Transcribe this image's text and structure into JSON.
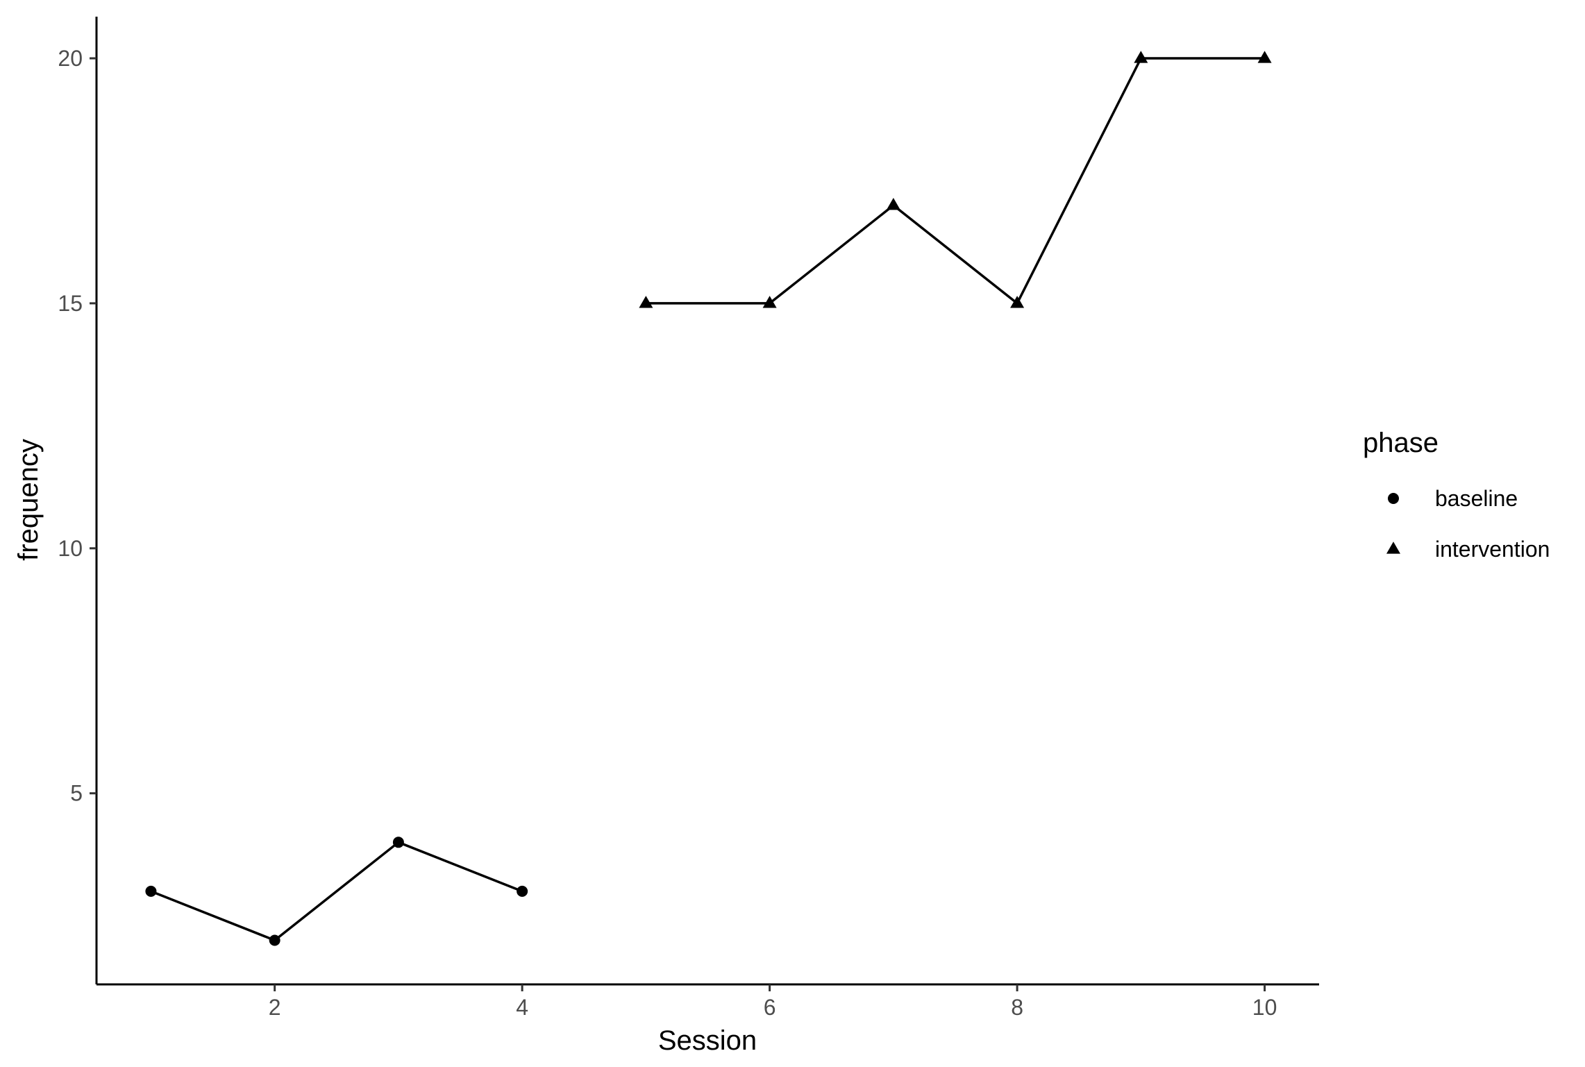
{
  "chart_data": {
    "type": "line",
    "title": "",
    "xlabel": "Session",
    "ylabel": "frequency",
    "xlim": [
      0.56,
      10.44
    ],
    "ylim": [
      1.1,
      20.85
    ],
    "xticks": [
      2,
      4,
      6,
      8,
      10
    ],
    "yticks": [
      5,
      10,
      15,
      20
    ],
    "grid": false,
    "legend": {
      "title": "phase",
      "placement": "right",
      "entries": [
        {
          "label": "baseline",
          "shape": "circle"
        },
        {
          "label": "intervention",
          "shape": "triangle"
        }
      ]
    },
    "series": [
      {
        "name": "baseline",
        "shape": "circle",
        "color": "#000000",
        "x": [
          1,
          2,
          3,
          4
        ],
        "y": [
          3,
          2,
          4,
          3
        ]
      },
      {
        "name": "intervention",
        "shape": "triangle",
        "color": "#000000",
        "x": [
          5,
          6,
          7,
          8,
          9,
          10
        ],
        "y": [
          15,
          15,
          17,
          15,
          20,
          20
        ]
      }
    ]
  }
}
